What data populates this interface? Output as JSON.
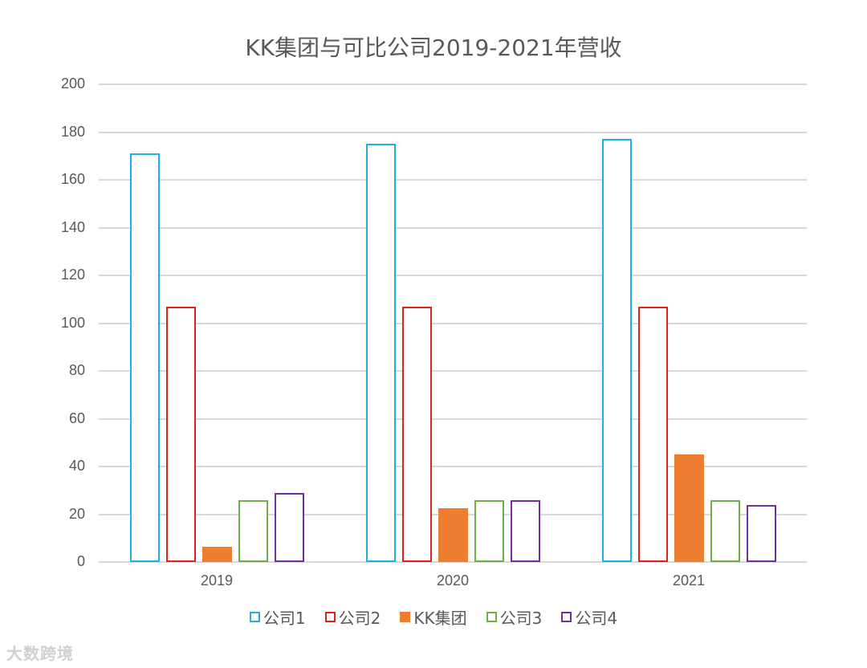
{
  "chart_data": {
    "type": "bar",
    "title": "KK集团与可比公司2019-2021年营收",
    "categories": [
      "2019",
      "2020",
      "2021"
    ],
    "series": [
      {
        "name": "公司1",
        "values": [
          171,
          175,
          177
        ],
        "color": "#1fb0e0",
        "style": "outline"
      },
      {
        "name": "公司2",
        "values": [
          107,
          107,
          107
        ],
        "color": "#e0211c",
        "style": "outline"
      },
      {
        "name": "KK集团",
        "values": [
          6.5,
          22.5,
          45
        ],
        "color": "#ed7d31",
        "style": "filled"
      },
      {
        "name": "公司3",
        "values": [
          26,
          26,
          26
        ],
        "color": "#70ad47",
        "style": "outline"
      },
      {
        "name": "公司4",
        "values": [
          29,
          26,
          24
        ],
        "color": "#7030a0",
        "style": "outline"
      }
    ],
    "xlabel": "",
    "ylabel": "",
    "ylim": [
      0,
      200
    ],
    "yticks": [
      0,
      20,
      40,
      60,
      80,
      100,
      120,
      140,
      160,
      180,
      200
    ],
    "grid": true,
    "legend_position": "bottom"
  },
  "title": "KK集团与可比公司2019-2021年营收",
  "watermark": "大数跨境"
}
